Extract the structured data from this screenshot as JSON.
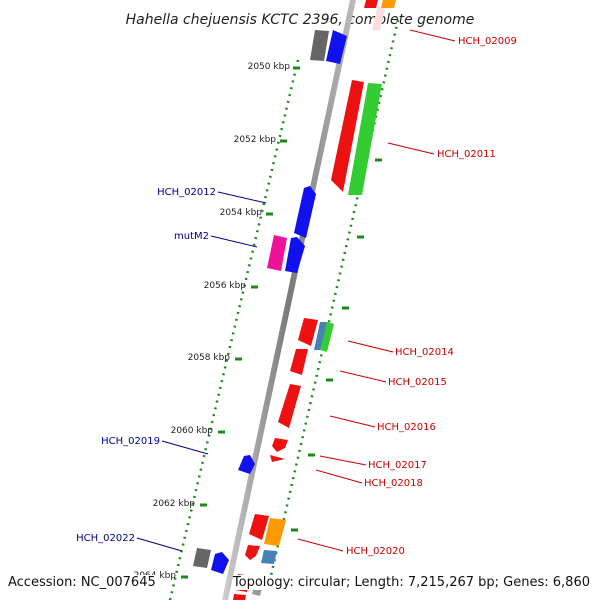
{
  "title": "Hahella chejuensis KCTC 2396, complete genome",
  "footer": {
    "accession": "Accession: NC_007645",
    "summary": "Topology: circular; Length: 7,215,267 bp; Genes: 6,860"
  },
  "kbp_ticks": [
    "2050 kbp",
    "2052 kbp",
    "2054 kbp",
    "2056 kbp",
    "2058 kbp",
    "2060 kbp",
    "2062 kbp",
    "2064 kbp"
  ],
  "gene_labels_left": [
    "HCH_02012",
    "mutM2",
    "HCH_02019",
    "HCH_02022"
  ],
  "gene_labels_right": [
    "HCH_02009",
    "HCH_02011",
    "HCH_02014",
    "HCH_02015",
    "HCH_02016",
    "HCH_02017",
    "HCH_02018",
    "HCH_02020"
  ],
  "colors": {
    "forward_label": "#cc0000",
    "reverse_label": "#00008b",
    "backbone": "#888888",
    "tick": "#1a8a1a",
    "red": "#ee1111",
    "blue": "#1111ee",
    "green": "#33cc33",
    "orange": "#ff9900",
    "magenta": "#ee1199",
    "gray": "#666666",
    "steelblue": "#4682b4"
  }
}
